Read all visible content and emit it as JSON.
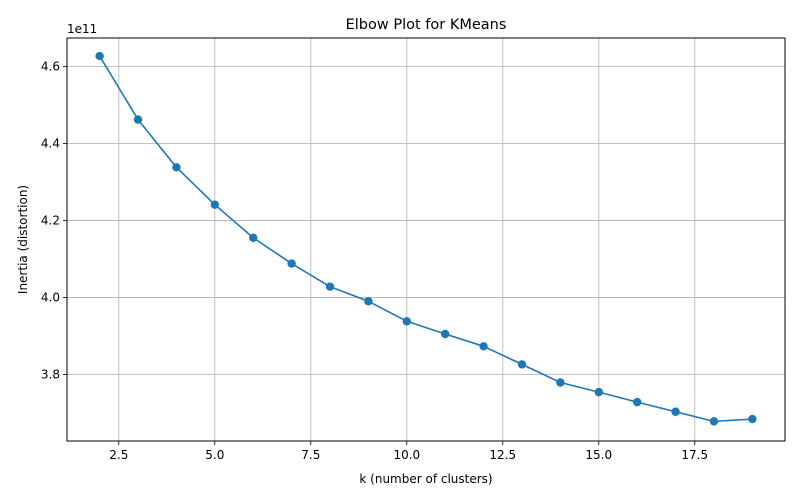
{
  "chart_data": {
    "type": "line",
    "title": "Elbow Plot for KMeans",
    "xlabel": "k (number of clusters)",
    "ylabel": "Inertia (distortion)",
    "y_offset_label": "1e11",
    "x": [
      2,
      3,
      4,
      5,
      6,
      7,
      8,
      9,
      10,
      11,
      12,
      13,
      14,
      15,
      16,
      17,
      18,
      19
    ],
    "series": [
      {
        "values": [
          4.627,
          4.462,
          4.338,
          4.241,
          4.155,
          4.088,
          4.028,
          3.99,
          3.938,
          3.905,
          3.873,
          3.826,
          3.779,
          3.754,
          3.728,
          3.703,
          3.678,
          3.684
        ],
        "color": "#1f77b4",
        "marker": "circle"
      }
    ],
    "xlim": [
      1.15,
      19.85
    ],
    "ylim": [
      3.627,
      4.674
    ],
    "xticks": [
      2.5,
      5.0,
      7.5,
      10.0,
      12.5,
      15.0,
      17.5
    ],
    "xtick_labels": [
      "2.5",
      "5.0",
      "7.5",
      "10.0",
      "12.5",
      "15.0",
      "17.5"
    ],
    "yticks": [
      3.8,
      4.0,
      4.2,
      4.4,
      4.6
    ],
    "ytick_labels": [
      "3.8",
      "4.0",
      "4.2",
      "4.4",
      "4.6"
    ],
    "grid": true,
    "grid_color": "#b0b0b0"
  }
}
